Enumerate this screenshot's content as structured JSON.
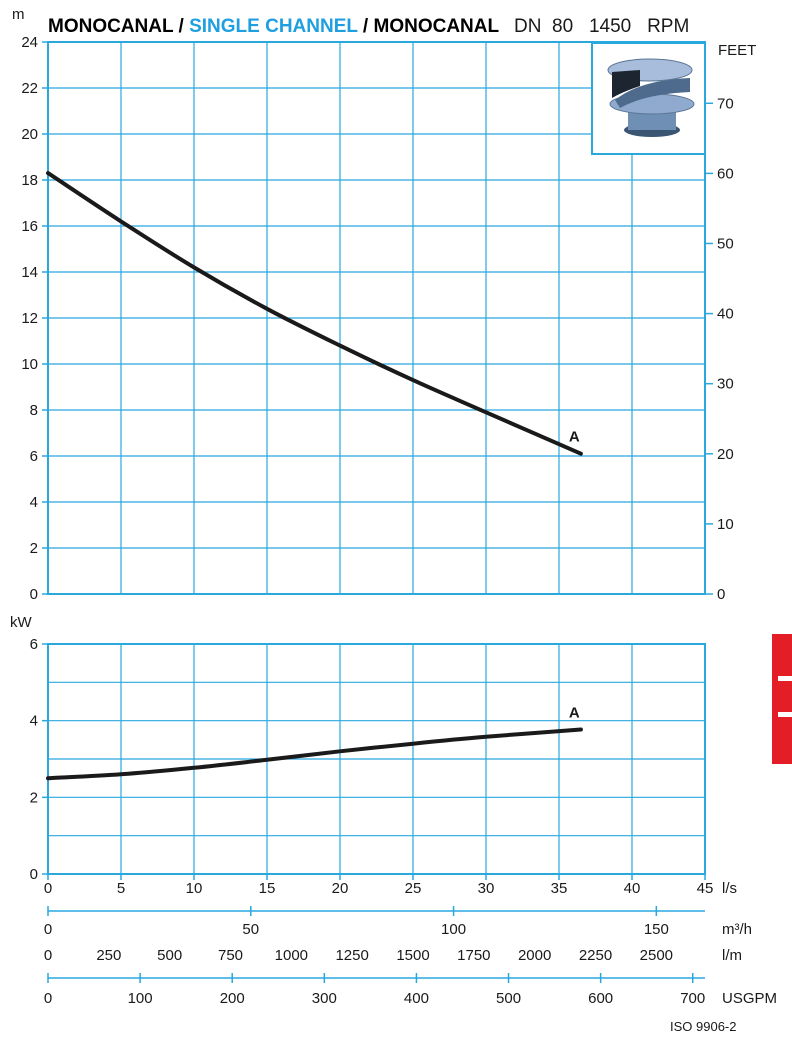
{
  "title": {
    "part1": "MONOCANAL / ",
    "part2": "SINGLE CHANNEL",
    "part3": " / MONOCANAL",
    "model": "DN  80   1450   RPM"
  },
  "colors": {
    "grid": "#29a8e0",
    "highlight": "#1f9fe0",
    "curve": "#1a1a1a",
    "brand_tab": "#e41e26"
  },
  "image_icon": "impeller-photo",
  "footer": "ISO 9906-2",
  "chart_data": [
    {
      "type": "line",
      "name": "head",
      "y_unit": "m",
      "y2_unit": "FEET",
      "ylim": [
        0,
        24
      ],
      "y_ticks": [
        "0",
        "2",
        "4",
        "6",
        "8",
        "10",
        "12",
        "14",
        "16",
        "18",
        "20",
        "22",
        "24"
      ],
      "y2lim_feet": [
        0,
        78.74
      ],
      "y2_ticks": [
        "0",
        "10",
        "20",
        "30",
        "40",
        "50",
        "60",
        "70"
      ],
      "xlim": [
        0,
        45
      ],
      "grid": true,
      "series": [
        {
          "name": "A",
          "x": [
            0,
            5,
            10,
            15,
            20,
            25,
            30,
            36.5
          ],
          "y": [
            18.3,
            16.2,
            14.2,
            12.4,
            10.8,
            9.3,
            7.9,
            6.1
          ]
        }
      ]
    },
    {
      "type": "line",
      "name": "power",
      "y_unit": "kW",
      "ylim": [
        0,
        6
      ],
      "y_ticks": [
        "0",
        "2",
        "4",
        "6"
      ],
      "xlim": [
        0,
        45
      ],
      "grid": true,
      "series": [
        {
          "name": "A",
          "x": [
            0,
            5,
            10,
            15,
            20,
            25,
            30,
            36.5
          ],
          "y": [
            2.5,
            2.6,
            2.77,
            2.98,
            3.2,
            3.4,
            3.58,
            3.77
          ]
        }
      ]
    }
  ],
  "x_axes": [
    {
      "unit": "l/s",
      "max": 45,
      "ticks": [
        "0",
        "5",
        "10",
        "15",
        "20",
        "25",
        "30",
        "35",
        "40",
        "45"
      ],
      "values": [
        0,
        5,
        10,
        15,
        20,
        25,
        30,
        35,
        40,
        45
      ]
    },
    {
      "unit": "m³/h",
      "max": 162,
      "ticks": [
        "0",
        "50",
        "100",
        "150"
      ],
      "values": [
        0,
        50,
        100,
        150
      ]
    },
    {
      "unit": "l/m",
      "max": 2700,
      "ticks": [
        "0",
        "250",
        "500",
        "750",
        "1000",
        "1250",
        "1500",
        "1750",
        "2000",
        "2250",
        "2500"
      ],
      "values": [
        0,
        250,
        500,
        750,
        1000,
        1250,
        1500,
        1750,
        2000,
        2250,
        2500
      ]
    },
    {
      "unit": "USGPM",
      "max": 713.3,
      "ticks": [
        "0",
        "100",
        "200",
        "300",
        "400",
        "500",
        "600",
        "700"
      ],
      "values": [
        0,
        100,
        200,
        300,
        400,
        500,
        600,
        700
      ]
    }
  ]
}
